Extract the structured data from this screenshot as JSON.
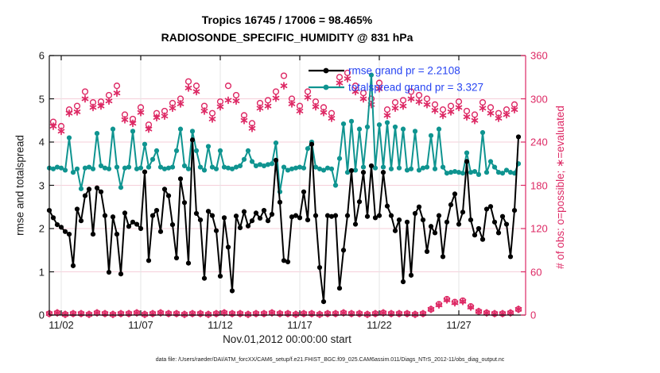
{
  "title": {
    "line1": "Tropics 16745 / 17006 = 98.465%",
    "line2": "RADIOSONDE_SPECIFIC_HUMIDITY @ 831 hPa"
  },
  "legend": {
    "text_color": "#2744f2",
    "items": [
      {
        "label": "rmse grand pr = 2.2108",
        "series": "rmse"
      },
      {
        "label": "totalspread grand pr = 3.327",
        "series": "totalspread"
      }
    ]
  },
  "axes": {
    "left": {
      "label": "rmse and totalspread",
      "ticks": [
        "0",
        "1",
        "2",
        "3",
        "4",
        "5",
        "6"
      ],
      "range": [
        0,
        6
      ],
      "color": "#1a1a1a"
    },
    "right": {
      "label": "# of obs: o=possible; ∗=evaluated",
      "ticks": [
        "0",
        "60",
        "120",
        "180",
        "240",
        "300",
        "360"
      ],
      "range": [
        0,
        360
      ],
      "color": "#dd2864"
    },
    "x": {
      "label": "Nov.01,2012 00:00:00 start",
      "ticks": [
        "11/02",
        "11/07",
        "11/12",
        "11/17",
        "11/22",
        "11/27"
      ],
      "tick_days": [
        1,
        6,
        11,
        16,
        21,
        26
      ]
    }
  },
  "footer": "data file: /Users/raeder/DAI/ATM_forcXX/CAM6_setup/f.e21.FHIST_BGC.f09_025.CAM6assim.011/Diags_NTrS_2012-11/obs_diag_output.nc",
  "colors": {
    "rmse": "#000000",
    "totalspread": "#0f9490",
    "obs": "#dd2864",
    "grid_h": "#f6cfda",
    "grid_v": "#e4e4e4",
    "axis_dark": "#111111"
  },
  "chart_data": {
    "type": "line",
    "title": "Tropics 16745 / 17006 = 98.465% | RADIOSONDE_SPECIFIC_HUMIDITY @ 831 hPa",
    "xlabel": "Nov.01,2012 00:00:00 start",
    "ylabel_left": "rmse and totalspread",
    "ylabel_right": "# of obs: o=possible; ∗=evaluated",
    "ylim_left": [
      0,
      6
    ],
    "ylim_right": [
      0,
      360
    ],
    "grid": true,
    "legend_position": "top-center",
    "time_days_since_nov1": {
      "start": 0.25,
      "step": 0.25,
      "count": 119
    },
    "series": [
      {
        "name": "rmse",
        "axis": "left",
        "style": "line-dot",
        "grand_mean": 2.2108,
        "values": [
          2.42,
          2.25,
          2.09,
          2.03,
          1.93,
          1.87,
          1.14,
          2.45,
          2.18,
          2.76,
          2.91,
          1.87,
          2.94,
          2.85,
          2.3,
          0.99,
          2.27,
          1.87,
          0.95,
          2.36,
          2.05,
          2.15,
          2.1,
          2.0,
          3.31,
          1.26,
          2.3,
          2.42,
          1.93,
          2.91,
          2.76,
          2.09,
          1.32,
          3.15,
          2.6,
          1.2,
          4.05,
          2.35,
          2.2,
          0.85,
          2.4,
          2.3,
          1.95,
          0.9,
          2.25,
          1.57,
          0.56,
          2.29,
          2.02,
          2.39,
          2.06,
          2.18,
          2.36,
          2.24,
          2.42,
          2.18,
          2.33,
          3.58,
          2.61,
          1.26,
          1.23,
          2.27,
          2.3,
          2.25,
          2.85,
          2.2,
          3.95,
          2.3,
          1.1,
          0.31,
          2.3,
          2.28,
          2.3,
          0.62,
          1.5,
          2.3,
          3.34,
          2.1,
          2.62,
          3.3,
          2.28,
          3.45,
          2.25,
          2.3,
          3.3,
          2.52,
          2.3,
          1.95,
          2.2,
          0.77,
          2.15,
          0.92,
          2.35,
          2.5,
          2.2,
          1.47,
          2.05,
          1.9,
          2.3,
          1.35,
          2.15,
          2.55,
          2.8,
          2.1,
          2.38,
          3.55,
          2.2,
          1.85,
          2.0,
          1.75,
          2.45,
          2.51,
          2.15,
          1.9,
          2.28,
          2.1,
          1.35,
          2.42,
          4.12
        ]
      },
      {
        "name": "totalspread",
        "axis": "left",
        "style": "line-dot",
        "grand_mean": 3.327,
        "values": [
          3.4,
          3.38,
          3.42,
          3.4,
          3.35,
          4.1,
          3.3,
          3.38,
          2.92,
          3.4,
          3.42,
          3.38,
          4.2,
          3.45,
          3.4,
          3.38,
          4.3,
          3.42,
          2.95,
          3.4,
          3.42,
          4.25,
          3.38,
          3.4,
          3.95,
          3.42,
          3.6,
          3.8,
          3.42,
          3.38,
          3.4,
          3.42,
          3.8,
          4.3,
          3.45,
          3.38,
          4.25,
          3.8,
          3.42,
          3.35,
          3.9,
          3.42,
          3.38,
          3.8,
          3.42,
          3.4,
          3.38,
          3.42,
          3.45,
          3.6,
          3.8,
          3.55,
          3.45,
          3.48,
          3.45,
          3.48,
          3.5,
          3.98,
          2.85,
          3.42,
          3.35,
          3.38,
          3.4,
          3.42,
          3.4,
          3.85,
          4.0,
          3.42,
          3.38,
          3.35,
          3.4,
          3.38,
          3.0,
          3.62,
          4.42,
          3.3,
          4.48,
          3.35,
          4.3,
          3.42,
          4.35,
          5.55,
          3.4,
          4.4,
          3.42,
          4.45,
          3.38,
          4.35,
          3.4,
          4.3,
          3.35,
          3.38,
          4.25,
          3.35,
          3.4,
          3.42,
          4.15,
          3.38,
          4.3,
          3.42,
          3.28,
          3.3,
          3.32,
          3.3,
          3.28,
          3.75,
          3.3,
          3.32,
          3.25,
          4.22,
          3.3,
          3.55,
          3.42,
          3.3,
          3.28,
          3.35,
          3.3,
          3.28,
          3.5
        ]
      },
      {
        "name": "possible_obs",
        "axis": "right",
        "style": "open-circle",
        "values": [
          2,
          268,
          3,
          262,
          1,
          285,
          2,
          290,
          2,
          310,
          1,
          295,
          3,
          296,
          2,
          305,
          1,
          318,
          2,
          278,
          2,
          272,
          3,
          288,
          1,
          264,
          2,
          280,
          3,
          283,
          2,
          294,
          2,
          300,
          1,
          324,
          2,
          318,
          2,
          290,
          1,
          280,
          2,
          296,
          3,
          318,
          2,
          305,
          2,
          277,
          1,
          266,
          2,
          294,
          2,
          298,
          3,
          310,
          2,
          332,
          2,
          300,
          1,
          290,
          2,
          310,
          2,
          296,
          1,
          288,
          2,
          280,
          2,
          330,
          3,
          336,
          2,
          318,
          2,
          308,
          1,
          300,
          2,
          322,
          3,
          285,
          2,
          295,
          2,
          298,
          2,
          310,
          1,
          305,
          2,
          300,
          8,
          292,
          15,
          285,
          22,
          290,
          18,
          296,
          20,
          283,
          12,
          278,
          5,
          295,
          3,
          288,
          2,
          280,
          2,
          285,
          3,
          292,
          8
        ]
      },
      {
        "name": "evaluated_obs",
        "axis": "right",
        "style": "asterisk",
        "values": [
          2,
          262,
          3,
          255,
          1,
          280,
          2,
          282,
          2,
          300,
          1,
          288,
          3,
          290,
          2,
          297,
          1,
          308,
          2,
          271,
          2,
          266,
          3,
          281,
          1,
          258,
          2,
          274,
          3,
          276,
          2,
          287,
          2,
          293,
          1,
          315,
          2,
          310,
          2,
          283,
          1,
          272,
          2,
          289,
          3,
          298,
          2,
          297,
          2,
          270,
          1,
          259,
          2,
          287,
          2,
          290,
          3,
          301,
          2,
          318,
          2,
          293,
          1,
          283,
          2,
          302,
          2,
          289,
          1,
          281,
          2,
          273,
          2,
          322,
          3,
          328,
          2,
          310,
          2,
          300,
          1,
          292,
          2,
          314,
          3,
          277,
          2,
          287,
          2,
          290,
          2,
          300,
          1,
          296,
          2,
          292,
          8,
          284,
          14,
          277,
          21,
          282,
          17,
          288,
          19,
          275,
          11,
          270,
          5,
          287,
          3,
          280,
          2,
          273,
          2,
          278,
          3,
          285,
          8
        ]
      }
    ]
  }
}
